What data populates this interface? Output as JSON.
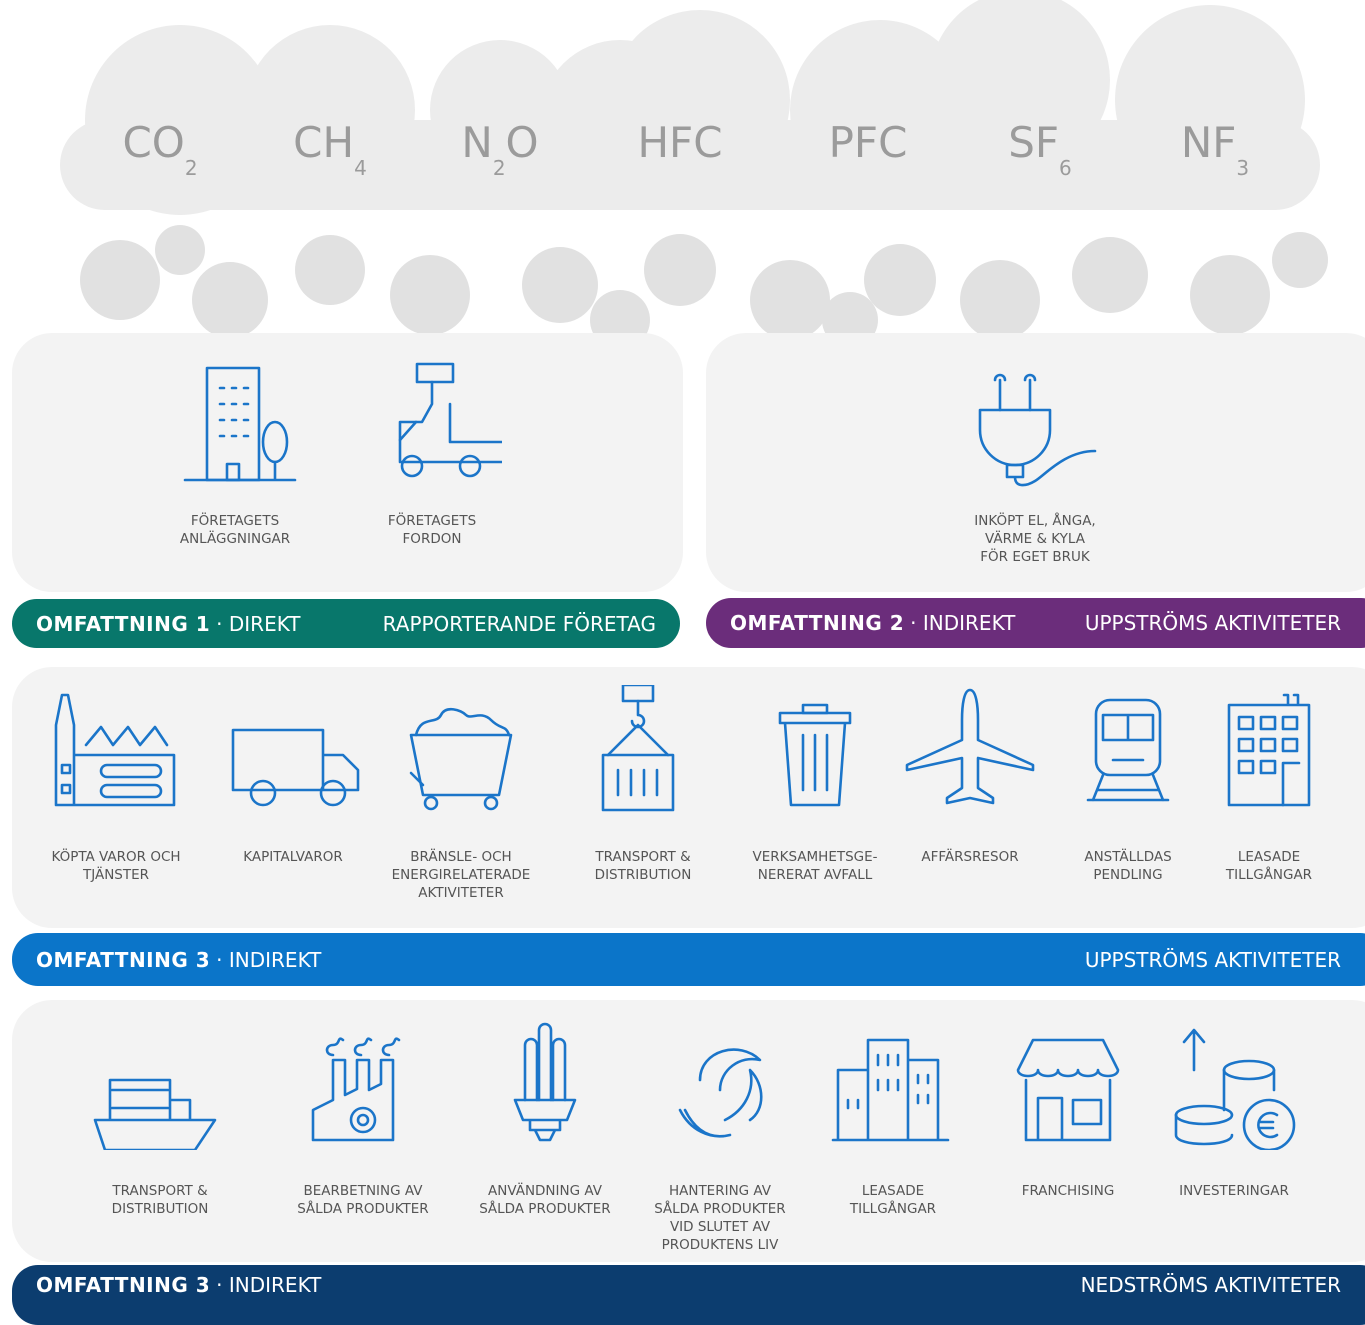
{
  "gases": [
    {
      "base": "CO",
      "sub": "2"
    },
    {
      "base": "CH",
      "sub": "4"
    },
    {
      "base": "N",
      "sub": "2",
      "tail": "O"
    },
    {
      "base": "HFC"
    },
    {
      "base": "PFC"
    },
    {
      "base": "SF",
      "sub": "6"
    },
    {
      "base": "NF",
      "sub": "3"
    }
  ],
  "scope1": {
    "items": [
      "FÖRETAGETS\nANLÄGGNINGAR",
      "FÖRETAGETS\nFORDON"
    ],
    "bar": {
      "label": "OMFATTNING 1",
      "type": "· DIREKT",
      "scope": "RAPPORTERANDE FÖRETAG"
    }
  },
  "scope2": {
    "items": [
      "INKÖPT EL, ÅNGA, VÄRME & KYLA\nFÖR EGET BRUK"
    ],
    "bar": {
      "label": "OMFATTNING 2",
      "type": "· INDIREKT",
      "scope": "UPPSTRÖMS AKTIVITETER"
    }
  },
  "scope3_upstream": {
    "items": [
      "KÖPTA VAROR OCH\nTJÄNSTER",
      "KAPITALVAROR",
      "BRÄNSLE- OCH\nENERGIRELATERADE\nAKTIVITETER",
      "TRANSPORT &\nDISTRIBUTION",
      "VERKSAMHETSGE-\nNERERAT AVFALL",
      "AFFÄRSRESOR",
      "ANSTÄLLDAS\nPENDLING",
      "LEASADE\nTILLGÅNGAR"
    ],
    "bar": {
      "label": "OMFATTNING 3",
      "type": "· INDIREKT",
      "scope": "UPPSTRÖMS AKTIVITETER"
    }
  },
  "scope3_downstream": {
    "items": [
      "TRANSPORT &\nDISTRIBUTION",
      "BEARBETNING AV\nSÅLDA PRODUKTER",
      "ANVÄNDNING AV\nSÅLDA PRODUKTER",
      "HANTERING AV\nSÅLDA PRODUKTER\nVID SLUTET AV\nPRODUKTENS LIV",
      "LEASADE\nTILLGÅNGAR",
      "FRANCHISING",
      "INVESTERINGAR"
    ],
    "bar": {
      "label": "OMFATTNING 3",
      "type": "· INDIREKT",
      "scope": "NEDSTRÖMS AKTIVITETER"
    }
  }
}
